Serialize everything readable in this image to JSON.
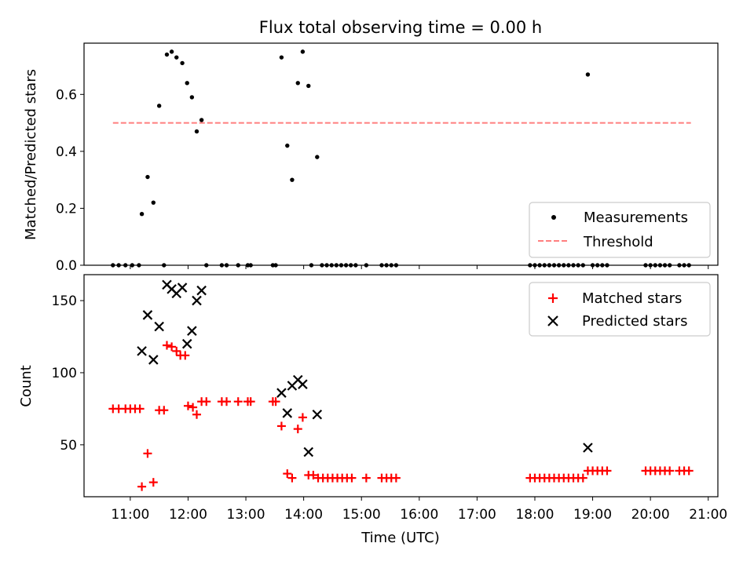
{
  "chart_data": [
    {
      "type": "scatter",
      "title": "Flux total observing time = 0.00 h",
      "xlabel": "",
      "ylabel": "Matched/Predicted stars",
      "xlim": [
        "10:12",
        "21:10"
      ],
      "ylim": [
        0,
        0.78
      ],
      "yticks": [
        0.0,
        0.2,
        0.4,
        0.6
      ],
      "ytick_labels": [
        "0.0",
        "0.2",
        "0.4",
        "0.6"
      ],
      "grid": false,
      "legend": {
        "position": "bottom-right",
        "entries": [
          "Measurements",
          "Threshold"
        ]
      },
      "series": [
        {
          "name": "Measurements",
          "marker": "dot",
          "color": "#000000",
          "points": [
            [
              "10:42",
              0
            ],
            [
              "10:48",
              0
            ],
            [
              "10:55",
              0
            ],
            [
              "11:02",
              0
            ],
            [
              "11:09",
              0
            ],
            [
              "11:12",
              0.18
            ],
            [
              "11:18",
              0.31
            ],
            [
              "11:24",
              0.22
            ],
            [
              "11:30",
              0.56
            ],
            [
              "11:35",
              0
            ],
            [
              "11:38",
              0.74
            ],
            [
              "11:43",
              0.75
            ],
            [
              "11:48",
              0.73
            ],
            [
              "11:54",
              0.71
            ],
            [
              "11:59",
              0.64
            ],
            [
              "12:04",
              0.59
            ],
            [
              "12:09",
              0.47
            ],
            [
              "12:14",
              0.51
            ],
            [
              "12:19",
              0
            ],
            [
              "12:35",
              0
            ],
            [
              "12:40",
              0
            ],
            [
              "12:52",
              0
            ],
            [
              "13:02",
              0
            ],
            [
              "13:05",
              0
            ],
            [
              "13:28",
              0
            ],
            [
              "13:31",
              0
            ],
            [
              "13:37",
              0.73
            ],
            [
              "13:43",
              0.42
            ],
            [
              "13:48",
              0.3
            ],
            [
              "13:54",
              0.64
            ],
            [
              "13:59",
              0.75
            ],
            [
              "14:05",
              0.63
            ],
            [
              "14:08",
              0
            ],
            [
              "14:14",
              0.38
            ],
            [
              "14:19",
              0
            ],
            [
              "14:24",
              0
            ],
            [
              "14:29",
              0
            ],
            [
              "14:34",
              0
            ],
            [
              "14:39",
              0
            ],
            [
              "14:44",
              0
            ],
            [
              "14:49",
              0
            ],
            [
              "14:54",
              0
            ],
            [
              "15:05",
              0
            ],
            [
              "15:21",
              0
            ],
            [
              "15:26",
              0
            ],
            [
              "15:31",
              0
            ],
            [
              "15:36",
              0
            ],
            [
              "17:55",
              0
            ],
            [
              "18:00",
              0
            ],
            [
              "18:05",
              0
            ],
            [
              "18:10",
              0
            ],
            [
              "18:15",
              0
            ],
            [
              "18:20",
              0
            ],
            [
              "18:25",
              0
            ],
            [
              "18:30",
              0
            ],
            [
              "18:35",
              0
            ],
            [
              "18:40",
              0
            ],
            [
              "18:45",
              0
            ],
            [
              "18:50",
              0
            ],
            [
              "18:55",
              0.67
            ],
            [
              "19:00",
              0
            ],
            [
              "19:05",
              0
            ],
            [
              "19:10",
              0
            ],
            [
              "19:15",
              0
            ],
            [
              "19:55",
              0
            ],
            [
              "20:00",
              0
            ],
            [
              "20:05",
              0
            ],
            [
              "20:10",
              0
            ],
            [
              "20:15",
              0
            ],
            [
              "20:20",
              0
            ],
            [
              "20:30",
              0
            ],
            [
              "20:35",
              0
            ],
            [
              "20:40",
              0
            ]
          ]
        },
        {
          "name": "Threshold",
          "type": "line",
          "style": "dashed",
          "color": "#ff7f7f",
          "x": [
            "10:42",
            "20:42"
          ],
          "y": [
            0.5,
            0.5
          ]
        }
      ]
    },
    {
      "type": "scatter",
      "title": "",
      "xlabel": "Time (UTC)",
      "ylabel": "Count",
      "xlim": [
        "10:12",
        "21:10"
      ],
      "ylim": [
        14,
        168
      ],
      "yticks": [
        50,
        100,
        150
      ],
      "ytick_labels": [
        "50",
        "100",
        "150"
      ],
      "xticks": [
        "11:00",
        "12:00",
        "13:00",
        "14:00",
        "15:00",
        "16:00",
        "17:00",
        "18:00",
        "19:00",
        "20:00",
        "21:00"
      ],
      "xtick_labels": [
        "11:00",
        "12:00",
        "13:00",
        "14:00",
        "15:00",
        "16:00",
        "17:00",
        "18:00",
        "19:00",
        "20:00",
        "21:00"
      ],
      "grid": false,
      "legend": {
        "position": "top-right",
        "entries": [
          "Matched stars",
          "Predicted stars"
        ]
      },
      "series": [
        {
          "name": "Matched stars",
          "marker": "plus",
          "color": "#ff0000",
          "points": [
            [
              "10:42",
              75
            ],
            [
              "10:48",
              75
            ],
            [
              "10:55",
              75
            ],
            [
              "11:00",
              75
            ],
            [
              "11:05",
              75
            ],
            [
              "11:10",
              75
            ],
            [
              "11:12",
              21
            ],
            [
              "11:18",
              44
            ],
            [
              "11:24",
              24
            ],
            [
              "11:30",
              74
            ],
            [
              "11:35",
              74
            ],
            [
              "11:38",
              119
            ],
            [
              "11:43",
              118
            ],
            [
              "11:48",
              115
            ],
            [
              "11:52",
              112
            ],
            [
              "11:57",
              112
            ],
            [
              "12:00",
              77
            ],
            [
              "12:05",
              76
            ],
            [
              "12:09",
              71
            ],
            [
              "12:14",
              80
            ],
            [
              "12:19",
              80
            ],
            [
              "12:35",
              80
            ],
            [
              "12:40",
              80
            ],
            [
              "12:52",
              80
            ],
            [
              "13:02",
              80
            ],
            [
              "13:05",
              80
            ],
            [
              "13:28",
              80
            ],
            [
              "13:31",
              80
            ],
            [
              "13:37",
              63
            ],
            [
              "13:43",
              30
            ],
            [
              "13:48",
              27
            ],
            [
              "13:54",
              61
            ],
            [
              "13:59",
              69
            ],
            [
              "14:05",
              29
            ],
            [
              "14:10",
              29
            ],
            [
              "14:15",
              27
            ],
            [
              "14:20",
              27
            ],
            [
              "14:25",
              27
            ],
            [
              "14:30",
              27
            ],
            [
              "14:35",
              27
            ],
            [
              "14:40",
              27
            ],
            [
              "14:45",
              27
            ],
            [
              "14:50",
              27
            ],
            [
              "15:05",
              27
            ],
            [
              "15:21",
              27
            ],
            [
              "15:26",
              27
            ],
            [
              "15:31",
              27
            ],
            [
              "15:36",
              27
            ],
            [
              "17:55",
              27
            ],
            [
              "18:00",
              27
            ],
            [
              "18:05",
              27
            ],
            [
              "18:10",
              27
            ],
            [
              "18:15",
              27
            ],
            [
              "18:20",
              27
            ],
            [
              "18:25",
              27
            ],
            [
              "18:30",
              27
            ],
            [
              "18:35",
              27
            ],
            [
              "18:40",
              27
            ],
            [
              "18:45",
              27
            ],
            [
              "18:50",
              27
            ],
            [
              "18:55",
              32
            ],
            [
              "19:00",
              32
            ],
            [
              "19:05",
              32
            ],
            [
              "19:10",
              32
            ],
            [
              "19:15",
              32
            ],
            [
              "19:55",
              32
            ],
            [
              "20:00",
              32
            ],
            [
              "20:05",
              32
            ],
            [
              "20:10",
              32
            ],
            [
              "20:15",
              32
            ],
            [
              "20:20",
              32
            ],
            [
              "20:30",
              32
            ],
            [
              "20:35",
              32
            ],
            [
              "20:40",
              32
            ]
          ]
        },
        {
          "name": "Predicted stars",
          "marker": "x",
          "color": "#000000",
          "points": [
            [
              "11:12",
              115
            ],
            [
              "11:18",
              140
            ],
            [
              "11:24",
              109
            ],
            [
              "11:30",
              132
            ],
            [
              "11:38",
              161
            ],
            [
              "11:43",
              158
            ],
            [
              "11:48",
              155
            ],
            [
              "11:54",
              159
            ],
            [
              "11:59",
              120
            ],
            [
              "12:04",
              129
            ],
            [
              "12:09",
              150
            ],
            [
              "12:14",
              157
            ],
            [
              "13:37",
              86
            ],
            [
              "13:43",
              72
            ],
            [
              "13:48",
              91
            ],
            [
              "13:54",
              95
            ],
            [
              "13:59",
              92
            ],
            [
              "14:05",
              45
            ],
            [
              "14:14",
              71
            ],
            [
              "18:55",
              48
            ]
          ]
        }
      ]
    }
  ]
}
